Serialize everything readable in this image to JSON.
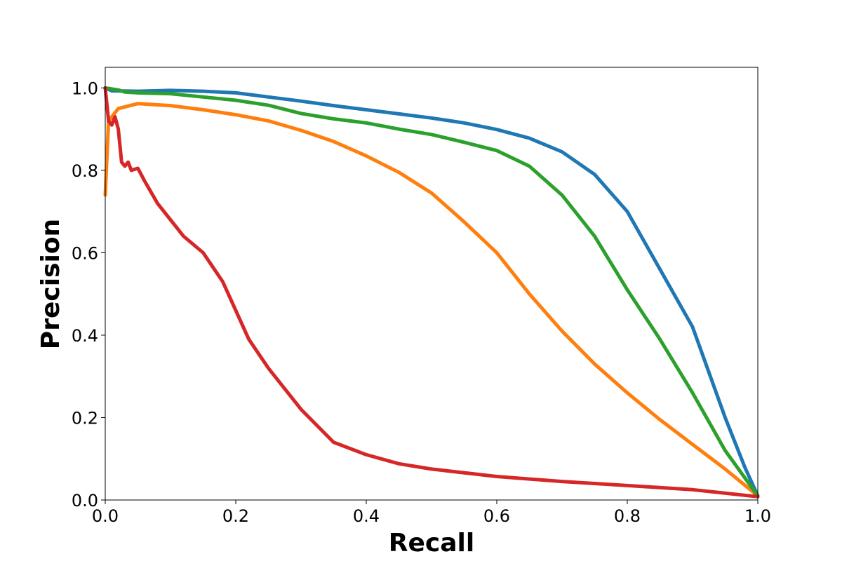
{
  "chart_data": {
    "type": "line",
    "title": "",
    "xlabel": "Recall",
    "ylabel": "Precision",
    "xlim": [
      0.0,
      1.0
    ],
    "ylim": [
      0.0,
      1.05
    ],
    "grid": false,
    "xticks": [
      0.0,
      0.2,
      0.4,
      0.6,
      0.8,
      1.0
    ],
    "yticks": [
      0.0,
      0.2,
      0.4,
      0.6,
      0.8,
      1.0
    ],
    "xtick_labels": [
      "0.0",
      "0.2",
      "0.4",
      "0.6",
      "0.8",
      "1.0"
    ],
    "ytick_labels": [
      "0.0",
      "0.2",
      "0.4",
      "0.6",
      "0.8",
      "1.0"
    ],
    "series": [
      {
        "color": "#1f77b4",
        "points": [
          [
            0.0,
            1.0
          ],
          [
            0.01,
            0.993
          ],
          [
            0.05,
            0.992
          ],
          [
            0.1,
            0.994
          ],
          [
            0.15,
            0.992
          ],
          [
            0.2,
            0.988
          ],
          [
            0.25,
            0.978
          ],
          [
            0.3,
            0.968
          ],
          [
            0.35,
            0.957
          ],
          [
            0.4,
            0.947
          ],
          [
            0.45,
            0.937
          ],
          [
            0.5,
            0.927
          ],
          [
            0.55,
            0.915
          ],
          [
            0.6,
            0.899
          ],
          [
            0.65,
            0.878
          ],
          [
            0.7,
            0.845
          ],
          [
            0.75,
            0.79
          ],
          [
            0.8,
            0.7
          ],
          [
            0.85,
            0.56
          ],
          [
            0.9,
            0.42
          ],
          [
            0.95,
            0.2
          ],
          [
            0.98,
            0.08
          ],
          [
            1.0,
            0.01
          ]
        ]
      },
      {
        "color": "#ff7f0e",
        "points": [
          [
            0.0,
            0.74
          ],
          [
            0.005,
            0.92
          ],
          [
            0.02,
            0.95
          ],
          [
            0.05,
            0.962
          ],
          [
            0.1,
            0.957
          ],
          [
            0.15,
            0.947
          ],
          [
            0.2,
            0.935
          ],
          [
            0.25,
            0.92
          ],
          [
            0.3,
            0.897
          ],
          [
            0.35,
            0.87
          ],
          [
            0.4,
            0.835
          ],
          [
            0.45,
            0.795
          ],
          [
            0.5,
            0.745
          ],
          [
            0.55,
            0.675
          ],
          [
            0.6,
            0.6
          ],
          [
            0.65,
            0.5
          ],
          [
            0.7,
            0.41
          ],
          [
            0.75,
            0.33
          ],
          [
            0.8,
            0.26
          ],
          [
            0.85,
            0.195
          ],
          [
            0.9,
            0.135
          ],
          [
            0.95,
            0.075
          ],
          [
            1.0,
            0.01
          ]
        ]
      },
      {
        "color": "#2ca02c",
        "points": [
          [
            0.0,
            1.0
          ],
          [
            0.02,
            0.995
          ],
          [
            0.03,
            0.99
          ],
          [
            0.05,
            0.988
          ],
          [
            0.1,
            0.986
          ],
          [
            0.15,
            0.978
          ],
          [
            0.2,
            0.97
          ],
          [
            0.25,
            0.958
          ],
          [
            0.3,
            0.938
          ],
          [
            0.35,
            0.925
          ],
          [
            0.4,
            0.915
          ],
          [
            0.45,
            0.9
          ],
          [
            0.5,
            0.887
          ],
          [
            0.55,
            0.868
          ],
          [
            0.6,
            0.848
          ],
          [
            0.65,
            0.81
          ],
          [
            0.7,
            0.74
          ],
          [
            0.75,
            0.64
          ],
          [
            0.8,
            0.51
          ],
          [
            0.85,
            0.39
          ],
          [
            0.9,
            0.26
          ],
          [
            0.95,
            0.12
          ],
          [
            1.0,
            0.01
          ]
        ]
      },
      {
        "color": "#d62728",
        "points": [
          [
            0.0,
            1.0
          ],
          [
            0.005,
            0.92
          ],
          [
            0.01,
            0.91
          ],
          [
            0.015,
            0.93
          ],
          [
            0.02,
            0.9
          ],
          [
            0.025,
            0.82
          ],
          [
            0.03,
            0.81
          ],
          [
            0.035,
            0.82
          ],
          [
            0.04,
            0.8
          ],
          [
            0.05,
            0.805
          ],
          [
            0.06,
            0.775
          ],
          [
            0.08,
            0.72
          ],
          [
            0.1,
            0.68
          ],
          [
            0.12,
            0.64
          ],
          [
            0.15,
            0.6
          ],
          [
            0.18,
            0.53
          ],
          [
            0.2,
            0.46
          ],
          [
            0.22,
            0.39
          ],
          [
            0.25,
            0.32
          ],
          [
            0.3,
            0.22
          ],
          [
            0.35,
            0.14
          ],
          [
            0.4,
            0.11
          ],
          [
            0.45,
            0.088
          ],
          [
            0.5,
            0.075
          ],
          [
            0.6,
            0.057
          ],
          [
            0.7,
            0.045
          ],
          [
            0.8,
            0.035
          ],
          [
            0.9,
            0.025
          ],
          [
            1.0,
            0.008
          ]
        ]
      }
    ]
  }
}
